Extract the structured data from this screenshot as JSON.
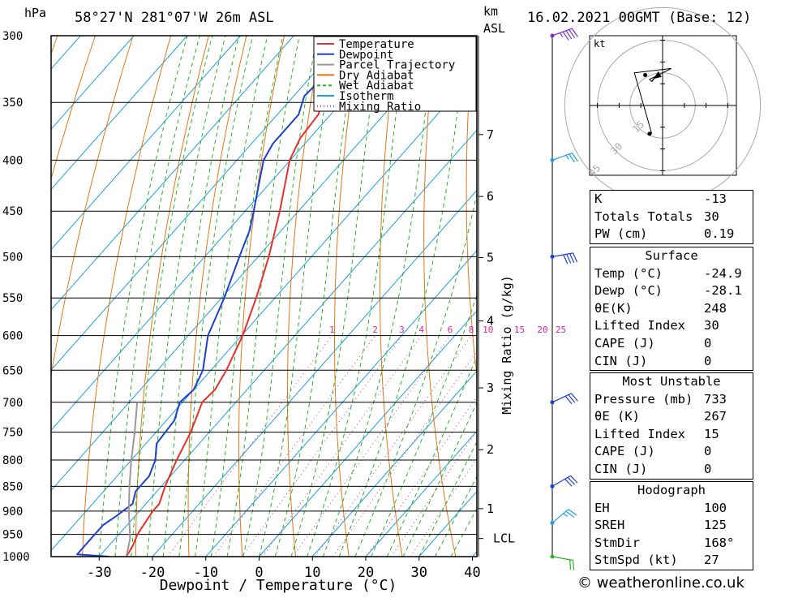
{
  "header": {
    "hpa_unit": "hPa",
    "location": "58°27'N  281°07'W  26m  ASL",
    "km_unit": "km",
    "asl_unit": "ASL",
    "datetime": "16.02.2021  00GMT  (Base: 12)"
  },
  "chart_data": {
    "type": "line",
    "title": "Skew-T log-P diagram",
    "xlabel": "Dewpoint / Temperature (°C)",
    "ylabel": "hPa",
    "right_axis_label": "Mixing Ratio (g/kg)",
    "xlim": [
      -40,
      40
    ],
    "ylim": [
      1000,
      300
    ],
    "pressure_ticks": [
      300,
      350,
      400,
      450,
      500,
      550,
      600,
      650,
      700,
      750,
      800,
      850,
      900,
      950,
      1000
    ],
    "pressure_tick_labels": [
      "300",
      "350",
      "400",
      "450",
      "500",
      "550",
      "600",
      "650",
      "700",
      "750",
      "800",
      "850",
      "900",
      "950",
      "1000"
    ],
    "temperature_ticks": [
      -30,
      -20,
      -10,
      0,
      10,
      20,
      30,
      40
    ],
    "temperature_tick_labels": [
      "-30",
      "-20",
      "-10",
      "0",
      "10",
      "20",
      "30",
      "40"
    ],
    "km_ticks": [
      {
        "label": "7",
        "pressure": 377
      },
      {
        "label": "6",
        "pressure": 435
      },
      {
        "label": "5",
        "pressure": 501
      },
      {
        "label": "4",
        "pressure": 580
      },
      {
        "label": "3",
        "pressure": 677
      },
      {
        "label": "2",
        "pressure": 781
      },
      {
        "label": "1",
        "pressure": 895
      },
      {
        "label": "LCL",
        "pressure": 959
      }
    ],
    "mixing_ratio_labels": [
      "1",
      "2",
      "3",
      "4",
      "6",
      "8",
      "10",
      "15",
      "20",
      "25"
    ],
    "mixing_ratio_values": [
      1,
      2,
      3,
      4,
      6,
      8,
      10,
      15,
      20,
      25
    ],
    "legend": [
      "Temperature",
      "Dewpoint",
      "Parcel Trajectory",
      "Dry Adiabat",
      "Wet Adiabat",
      "Isotherm",
      "Mixing Ratio"
    ],
    "legend_colors": [
      "#e8302a",
      "#1e3fcf",
      "#9a9a9a",
      "#e07818",
      "#27b427",
      "#1e9fe0",
      "#cc2aa0"
    ],
    "series": [
      {
        "name": "Temperature",
        "color": "#e8302a",
        "points": [
          [
            1000,
            -24.9
          ],
          [
            975,
            -25.5
          ],
          [
            950,
            -26.5
          ],
          [
            925,
            -27.0
          ],
          [
            900,
            -27.5
          ],
          [
            885,
            -27.5
          ],
          [
            850,
            -29.3
          ],
          [
            800,
            -31.5
          ],
          [
            750,
            -33.5
          ],
          [
            700,
            -36.3
          ],
          [
            680,
            -36.0
          ],
          [
            650,
            -37.1
          ],
          [
            600,
            -39.8
          ],
          [
            550,
            -43.5
          ],
          [
            500,
            -48.0
          ],
          [
            450,
            -53.5
          ],
          [
            400,
            -60.1
          ],
          [
            380,
            -61.8
          ],
          [
            360,
            -62.3
          ],
          [
            340,
            -65.0
          ],
          [
            330,
            -65.3
          ],
          [
            315,
            -65.6
          ],
          [
            300,
            -67.3
          ]
        ]
      },
      {
        "name": "Dewpoint",
        "color": "#1e3fcf",
        "points": [
          [
            1000,
            -28.1
          ],
          [
            995,
            -34.5
          ],
          [
            975,
            -34.5
          ],
          [
            950,
            -34.5
          ],
          [
            930,
            -34.5
          ],
          [
            910,
            -33.5
          ],
          [
            885,
            -32.5
          ],
          [
            860,
            -34.0
          ],
          [
            830,
            -34.0
          ],
          [
            800,
            -35.5
          ],
          [
            770,
            -38.0
          ],
          [
            730,
            -38.5
          ],
          [
            700,
            -40.5
          ],
          [
            680,
            -40.0
          ],
          [
            650,
            -41.5
          ],
          [
            600,
            -46.3
          ],
          [
            550,
            -49.5
          ],
          [
            500,
            -53.5
          ],
          [
            470,
            -56.0
          ],
          [
            450,
            -58.4
          ],
          [
            400,
            -65.0
          ],
          [
            385,
            -66.0
          ],
          [
            360,
            -66.0
          ],
          [
            345,
            -68.0
          ],
          [
            325,
            -67.5
          ],
          [
            300,
            -71.2
          ]
        ]
      },
      {
        "name": "Parcel Trajectory",
        "color": "#9a9a9a",
        "points": [
          [
            1000,
            -24.9
          ],
          [
            959,
            -27.2
          ],
          [
            900,
            -32.0
          ],
          [
            850,
            -36.0
          ],
          [
            800,
            -40.0
          ],
          [
            750,
            -44.0
          ],
          [
            700,
            -48.5
          ]
        ]
      }
    ],
    "wind_barbs": [
      {
        "pressure": 300,
        "direction_deg": 250,
        "speed_kt": 45,
        "color": "#7a30c8"
      },
      {
        "pressure": 400,
        "direction_deg": 250,
        "speed_kt": 25,
        "color": "#1e9fe0"
      },
      {
        "pressure": 500,
        "direction_deg": 260,
        "speed_kt": 40,
        "color": "#1e3fcf"
      },
      {
        "pressure": 700,
        "direction_deg": 245,
        "speed_kt": 30,
        "color": "#1e3fcf"
      },
      {
        "pressure": 850,
        "direction_deg": 240,
        "speed_kt": 30,
        "color": "#1e3fcf"
      },
      {
        "pressure": 925,
        "direction_deg": 230,
        "speed_kt": 25,
        "color": "#1e9fe0"
      },
      {
        "pressure": 1000,
        "direction_deg": 280,
        "speed_kt": 20,
        "color": "#27b427"
      }
    ],
    "hodograph": {
      "unit_label": "kt",
      "rings": [
        "15",
        "30",
        "45"
      ],
      "ring_speeds": [
        15,
        30,
        45
      ],
      "storm_motion_dir_deg": 168,
      "storm_motion_kt": 27,
      "black_trace": [
        [
          -5,
          -13
        ],
        [
          -13,
          15
        ],
        [
          4,
          17
        ],
        [
          -4,
          13
        ],
        [
          -6,
          12
        ],
        [
          -5,
          11
        ]
      ],
      "arrow_start": [
        -5,
        11
      ],
      "arrow_end": [
        -2,
        15
      ],
      "dots": [
        [
          -6,
          -13
        ],
        [
          -8,
          14
        ]
      ]
    }
  },
  "indices": [
    {
      "label": "K",
      "value": "-13"
    },
    {
      "label": "Totals Totals",
      "value": "30"
    },
    {
      "label": "PW (cm)",
      "value": "0.19"
    }
  ],
  "surface": {
    "title": "Surface",
    "rows": [
      {
        "label": "Temp (°C)",
        "value": "-24.9"
      },
      {
        "label": "Dewp (°C)",
        "value": "-28.1"
      },
      {
        "label": "θE(K)",
        "value": "248"
      },
      {
        "label": "Lifted Index",
        "value": "30"
      },
      {
        "label": "CAPE (J)",
        "value": "0"
      },
      {
        "label": "CIN (J)",
        "value": "0"
      }
    ]
  },
  "most_unstable": {
    "title": "Most Unstable",
    "rows": [
      {
        "label": "Pressure (mb)",
        "value": "733"
      },
      {
        "label": "θE (K)",
        "value": "267"
      },
      {
        "label": "Lifted Index",
        "value": "15"
      },
      {
        "label": "CAPE (J)",
        "value": "0"
      },
      {
        "label": "CIN (J)",
        "value": "0"
      }
    ]
  },
  "hodograph_table": {
    "title": "Hodograph",
    "rows": [
      {
        "label": "EH",
        "value": "100"
      },
      {
        "label": "SREH",
        "value": "125"
      },
      {
        "label": "StmDir",
        "value": "168°"
      },
      {
        "label": "StmSpd (kt)",
        "value": "27"
      }
    ]
  },
  "footer": {
    "copyright": "© weatheronline.co.uk"
  }
}
